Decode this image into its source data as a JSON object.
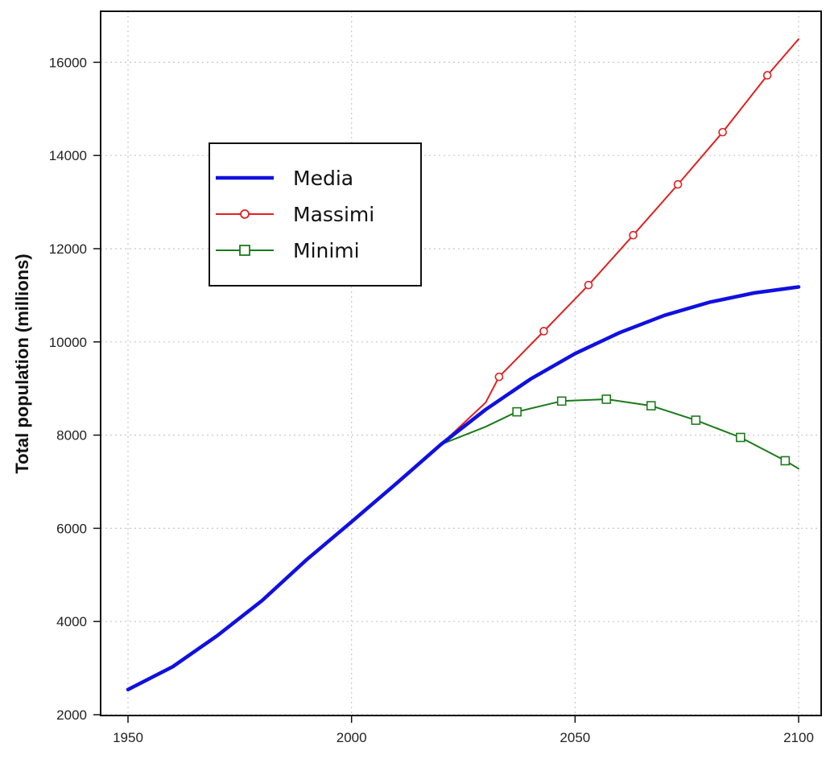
{
  "chart_data": {
    "type": "line",
    "title": "",
    "xlabel": "",
    "ylabel": "Total population (millions)",
    "xlim": [
      1950,
      2100
    ],
    "ylim": [
      2000,
      17000
    ],
    "x_ticks": [
      1950,
      2000,
      2050,
      2100
    ],
    "y_ticks": [
      2000,
      4000,
      6000,
      8000,
      10000,
      12000,
      14000,
      16000
    ],
    "grid": true,
    "legend_position": "upper-left",
    "series": [
      {
        "name": "Media",
        "color": "#1010e0",
        "marker": "none",
        "points": [
          [
            1950,
            2540
          ],
          [
            1960,
            3030
          ],
          [
            1970,
            3700
          ],
          [
            1980,
            4450
          ],
          [
            1990,
            5330
          ],
          [
            2000,
            6140
          ],
          [
            2010,
            6960
          ],
          [
            2020,
            7800
          ],
          [
            2030,
            8550
          ],
          [
            2040,
            9200
          ],
          [
            2050,
            9750
          ],
          [
            2060,
            10200
          ],
          [
            2070,
            10570
          ],
          [
            2080,
            10850
          ],
          [
            2090,
            11050
          ],
          [
            2100,
            11180
          ]
        ]
      },
      {
        "name": "Massimi",
        "color": "#e02020",
        "marker": "circle",
        "points": [
          [
            2020,
            7800
          ],
          [
            2030,
            8700
          ],
          [
            2033,
            9250
          ],
          [
            2043,
            10230
          ],
          [
            2053,
            11220
          ],
          [
            2063,
            12290
          ],
          [
            2073,
            13380
          ],
          [
            2083,
            14500
          ],
          [
            2093,
            15720
          ],
          [
            2100,
            16500
          ]
        ],
        "marker_points": [
          [
            2033,
            9250
          ],
          [
            2043,
            10230
          ],
          [
            2053,
            11220
          ],
          [
            2063,
            12290
          ],
          [
            2073,
            13380
          ],
          [
            2083,
            14500
          ],
          [
            2093,
            15720
          ]
        ]
      },
      {
        "name": "Minimi",
        "color": "#1a7a1a",
        "marker": "square",
        "points": [
          [
            2020,
            7800
          ],
          [
            2030,
            8180
          ],
          [
            2037,
            8500
          ],
          [
            2047,
            8730
          ],
          [
            2057,
            8770
          ],
          [
            2067,
            8630
          ],
          [
            2077,
            8320
          ],
          [
            2087,
            7950
          ],
          [
            2097,
            7450
          ],
          [
            2100,
            7280
          ]
        ],
        "marker_points": [
          [
            2037,
            8500
          ],
          [
            2047,
            8730
          ],
          [
            2057,
            8770
          ],
          [
            2067,
            8630
          ],
          [
            2077,
            8320
          ],
          [
            2087,
            7950
          ],
          [
            2097,
            7450
          ]
        ]
      }
    ]
  }
}
